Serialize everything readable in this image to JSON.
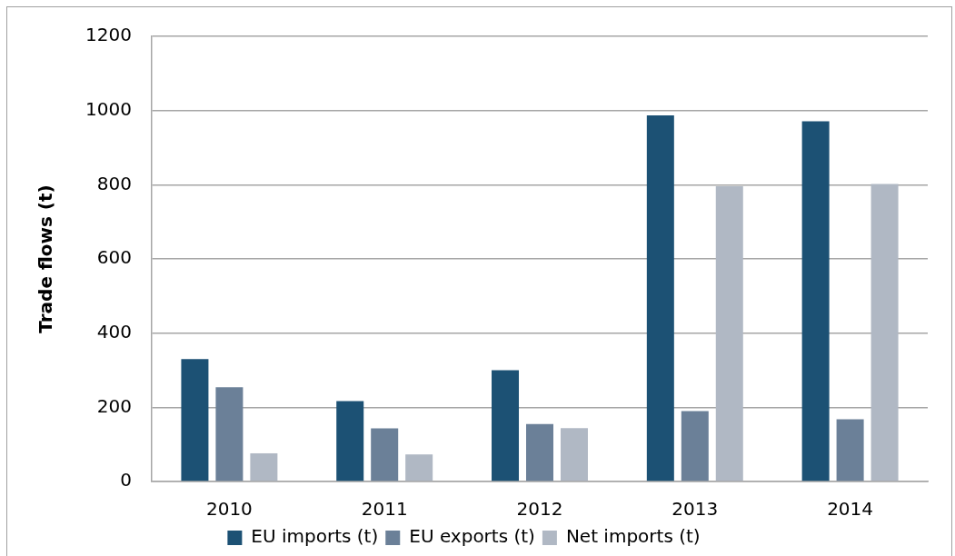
{
  "chart_data": {
    "type": "bar",
    "categories": [
      "2010",
      "2011",
      "2012",
      "2013",
      "2014"
    ],
    "ylabel": "Trade flows (t)",
    "series": [
      {
        "name": "EU imports (t)",
        "color": "#1c5174",
        "values": [
          330,
          217,
          300,
          987,
          971
        ]
      },
      {
        "name": "EU exports (t)",
        "color": "#6b8098",
        "values": [
          254,
          143,
          155,
          190,
          168
        ]
      },
      {
        "name": "Net imports (t)",
        "color": "#b0b8c4",
        "values": [
          76,
          73,
          144,
          796,
          802
        ]
      }
    ],
    "ylim": [
      0,
      1200
    ],
    "yticks": [
      0,
      200,
      400,
      600,
      800,
      1000,
      1200
    ],
    "grid": "y",
    "legend": "bottom"
  }
}
